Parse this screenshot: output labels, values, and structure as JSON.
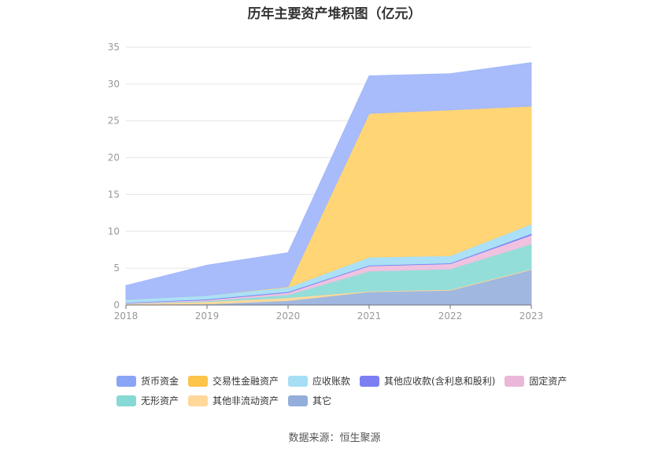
{
  "chart_data": {
    "type": "area",
    "stacked": true,
    "title": "历年主要资产堆积图（亿元）",
    "source": "数据来源：恒生聚源",
    "categories": [
      "2018",
      "2019",
      "2020",
      "2021",
      "2022",
      "2023"
    ],
    "ylim": [
      0,
      35
    ],
    "yticks": [
      "0",
      "5",
      "10",
      "15",
      "20",
      "25",
      "30",
      "35"
    ],
    "grid": true,
    "legend_position": "bottom",
    "series": [
      {
        "name": "其它",
        "color": "#9bb4dd",
        "values": [
          0.1,
          0.15,
          0.6,
          1.8,
          2.0,
          4.8
        ]
      },
      {
        "name": "其他非流动资产",
        "color": "#ffd89a",
        "values": [
          0.05,
          0.3,
          0.4,
          0.1,
          0.1,
          0.1
        ]
      },
      {
        "name": "无形资产",
        "color": "#8edcd8",
        "values": [
          0.05,
          0.1,
          0.4,
          2.7,
          2.8,
          3.4
        ]
      },
      {
        "name": "固定资产",
        "color": "#eec0de",
        "values": [
          0.1,
          0.15,
          0.3,
          0.7,
          0.7,
          1.2
        ]
      },
      {
        "name": "其他应收款(含利息和股利)",
        "color": "#7b7ff2",
        "values": [
          0.05,
          0.1,
          0.1,
          0.1,
          0.1,
          0.2
        ]
      },
      {
        "name": "应收账款",
        "color": "#a6def5",
        "values": [
          0.4,
          0.5,
          0.6,
          1.1,
          1.0,
          1.3
        ]
      },
      {
        "name": "交易性金融资产",
        "color": "#ffd36e",
        "values": [
          0,
          0,
          0.1,
          19.5,
          19.8,
          16.0
        ]
      },
      {
        "name": "货币资金",
        "color": "#a3b8fb",
        "values": [
          1.9,
          4.1,
          4.6,
          5.1,
          4.9,
          5.9
        ]
      }
    ],
    "legend": {
      "rows": [
        [
          {
            "name": "货币资金",
            "color": "#8aa4f6"
          },
          {
            "name": "交易性金融资产",
            "color": "#fdc44a"
          },
          {
            "name": "应收账款",
            "color": "#a6def5"
          },
          {
            "name": "其他应收款(含利息和股利)",
            "color": "#7b7ff2"
          },
          {
            "name": "固定资产",
            "color": "#eab7d9"
          }
        ],
        [
          {
            "name": "无形资产",
            "color": "#86d9d4"
          },
          {
            "name": "其他非流动资产",
            "color": "#ffd89a"
          },
          {
            "name": "其它",
            "color": "#94aedb"
          }
        ]
      ]
    }
  }
}
